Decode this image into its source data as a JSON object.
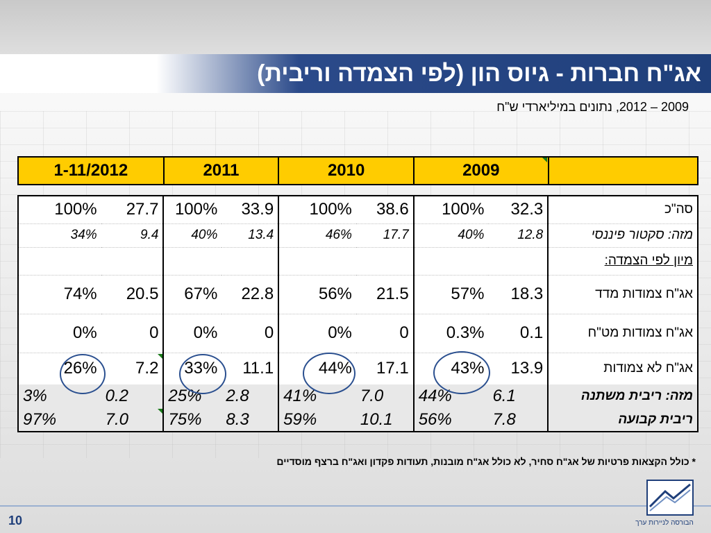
{
  "title": "אג\"ח חברות - גיוס הון (לפי הצמדה וריבית)",
  "subtitle": "2009 – 2012, נתונים במיליארדי ש\"ח",
  "header": [
    "1-11/2012",
    "2011",
    "2010",
    "2009",
    ""
  ],
  "rows": {
    "total": {
      "label": "סה\"כ",
      "y2012": [
        "100%",
        "27.7"
      ],
      "y2011": [
        "100%",
        "33.9"
      ],
      "y2010": [
        "100%",
        "38.6"
      ],
      "y2009": [
        "100%",
        "32.3"
      ]
    },
    "financial": {
      "label": "מזה: סקטור פיננסי",
      "y2012": [
        "34%",
        "9.4"
      ],
      "y2011": [
        "40%",
        "13.4"
      ],
      "y2010": [
        "46%",
        "17.7"
      ],
      "y2009": [
        "40%",
        "12.8"
      ]
    },
    "section": {
      "label": "מיון לפי הצמדה:"
    },
    "cpi": {
      "label": "אג\"ח צמודות מדד",
      "y2012": [
        "74%",
        "20.5"
      ],
      "y2011": [
        "67%",
        "22.8"
      ],
      "y2010": [
        "56%",
        "21.5"
      ],
      "y2009": [
        "57%",
        "18.3"
      ]
    },
    "fx": {
      "label": "אג\"ח צמודות מט\"ח",
      "y2012": [
        "0%",
        "0"
      ],
      "y2011": [
        "0%",
        "0"
      ],
      "y2010": [
        "0%",
        "0"
      ],
      "y2009": [
        "0.3%",
        "0.1"
      ]
    },
    "unlinked": {
      "label": "אג\"ח לא צמודות",
      "y2012": [
        "26%",
        "7.2"
      ],
      "y2011": [
        "33%",
        "11.1"
      ],
      "y2010": [
        "44%",
        "17.1"
      ],
      "y2009": [
        "43%",
        "13.9"
      ]
    },
    "variable": {
      "label": "מזה: ריבית משתנה",
      "y2012": [
        "3%",
        "0.2"
      ],
      "y2011": [
        "25%",
        "2.8"
      ],
      "y2010": [
        "41%",
        "7.0"
      ],
      "y2009": [
        "44%",
        "6.1"
      ]
    },
    "fixed": {
      "label": "ריבית קבועה",
      "y2012": [
        "97%",
        "7.0"
      ],
      "y2011": [
        "75%",
        "8.3"
      ],
      "y2010": [
        "59%",
        "10.1"
      ],
      "y2009": [
        "56%",
        "7.8"
      ]
    }
  },
  "footnote": "* כולל הקצאות פרטיות של אג\"ח סחיר, לא כולל אג\"ח מובנות, תעודות פקדון ואג\"ח ברצף מוסדיים",
  "page_number": "10",
  "logo_text": "הבורסה לניירות ערך",
  "colors": {
    "title_bar": "#1f3f7a",
    "header_fill": "#ffcc00",
    "circle": "#2a4f8f",
    "grey_rows": "#e8e8e8"
  }
}
